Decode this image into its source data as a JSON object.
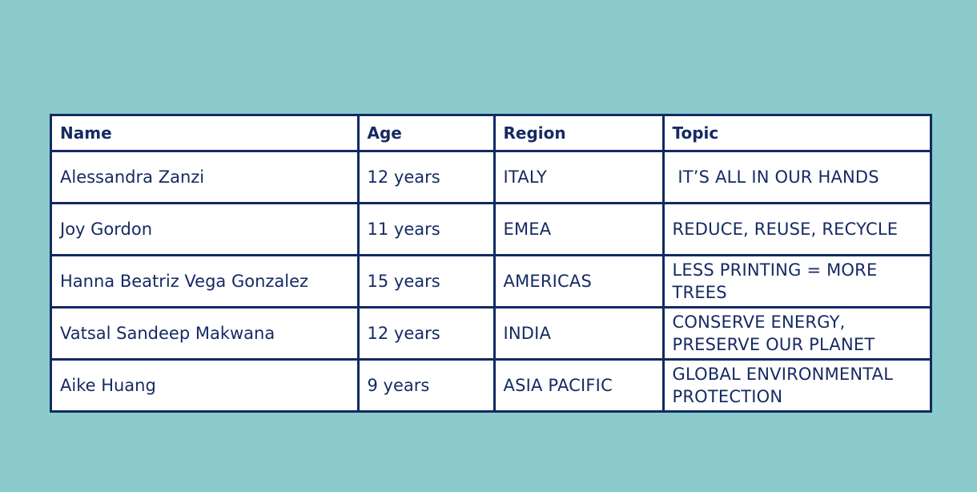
{
  "table": {
    "headers": [
      "Name",
      "Age",
      "Region",
      "Topic"
    ],
    "rows": [
      [
        "Alessandra Zanzi",
        "12 years",
        "ITALY",
        " IT’S ALL IN OUR HANDS"
      ],
      [
        "Joy Gordon",
        "11 years",
        "EMEA",
        "REDUCE, REUSE, RECYCLE"
      ],
      [
        "Hanna Beatriz Vega Gonzalez",
        "15 years",
        "AMERICAS",
        "LESS PRINTING = MORE TREES"
      ],
      [
        "Vatsal Sandeep Makwana",
        "12 years",
        "INDIA",
        "CONSERVE ENERGY, PRESERVE OUR PLANET"
      ],
      [
        "Aike Huang",
        "9 years",
        "ASIA PACIFIC",
        "GLOBAL ENVIRONMENTAL PROTECTION"
      ]
    ]
  },
  "colors": {
    "background": "#8bcbcb",
    "border": "#112a63",
    "text": "#162b63",
    "cell_fill": "#ffffff"
  }
}
